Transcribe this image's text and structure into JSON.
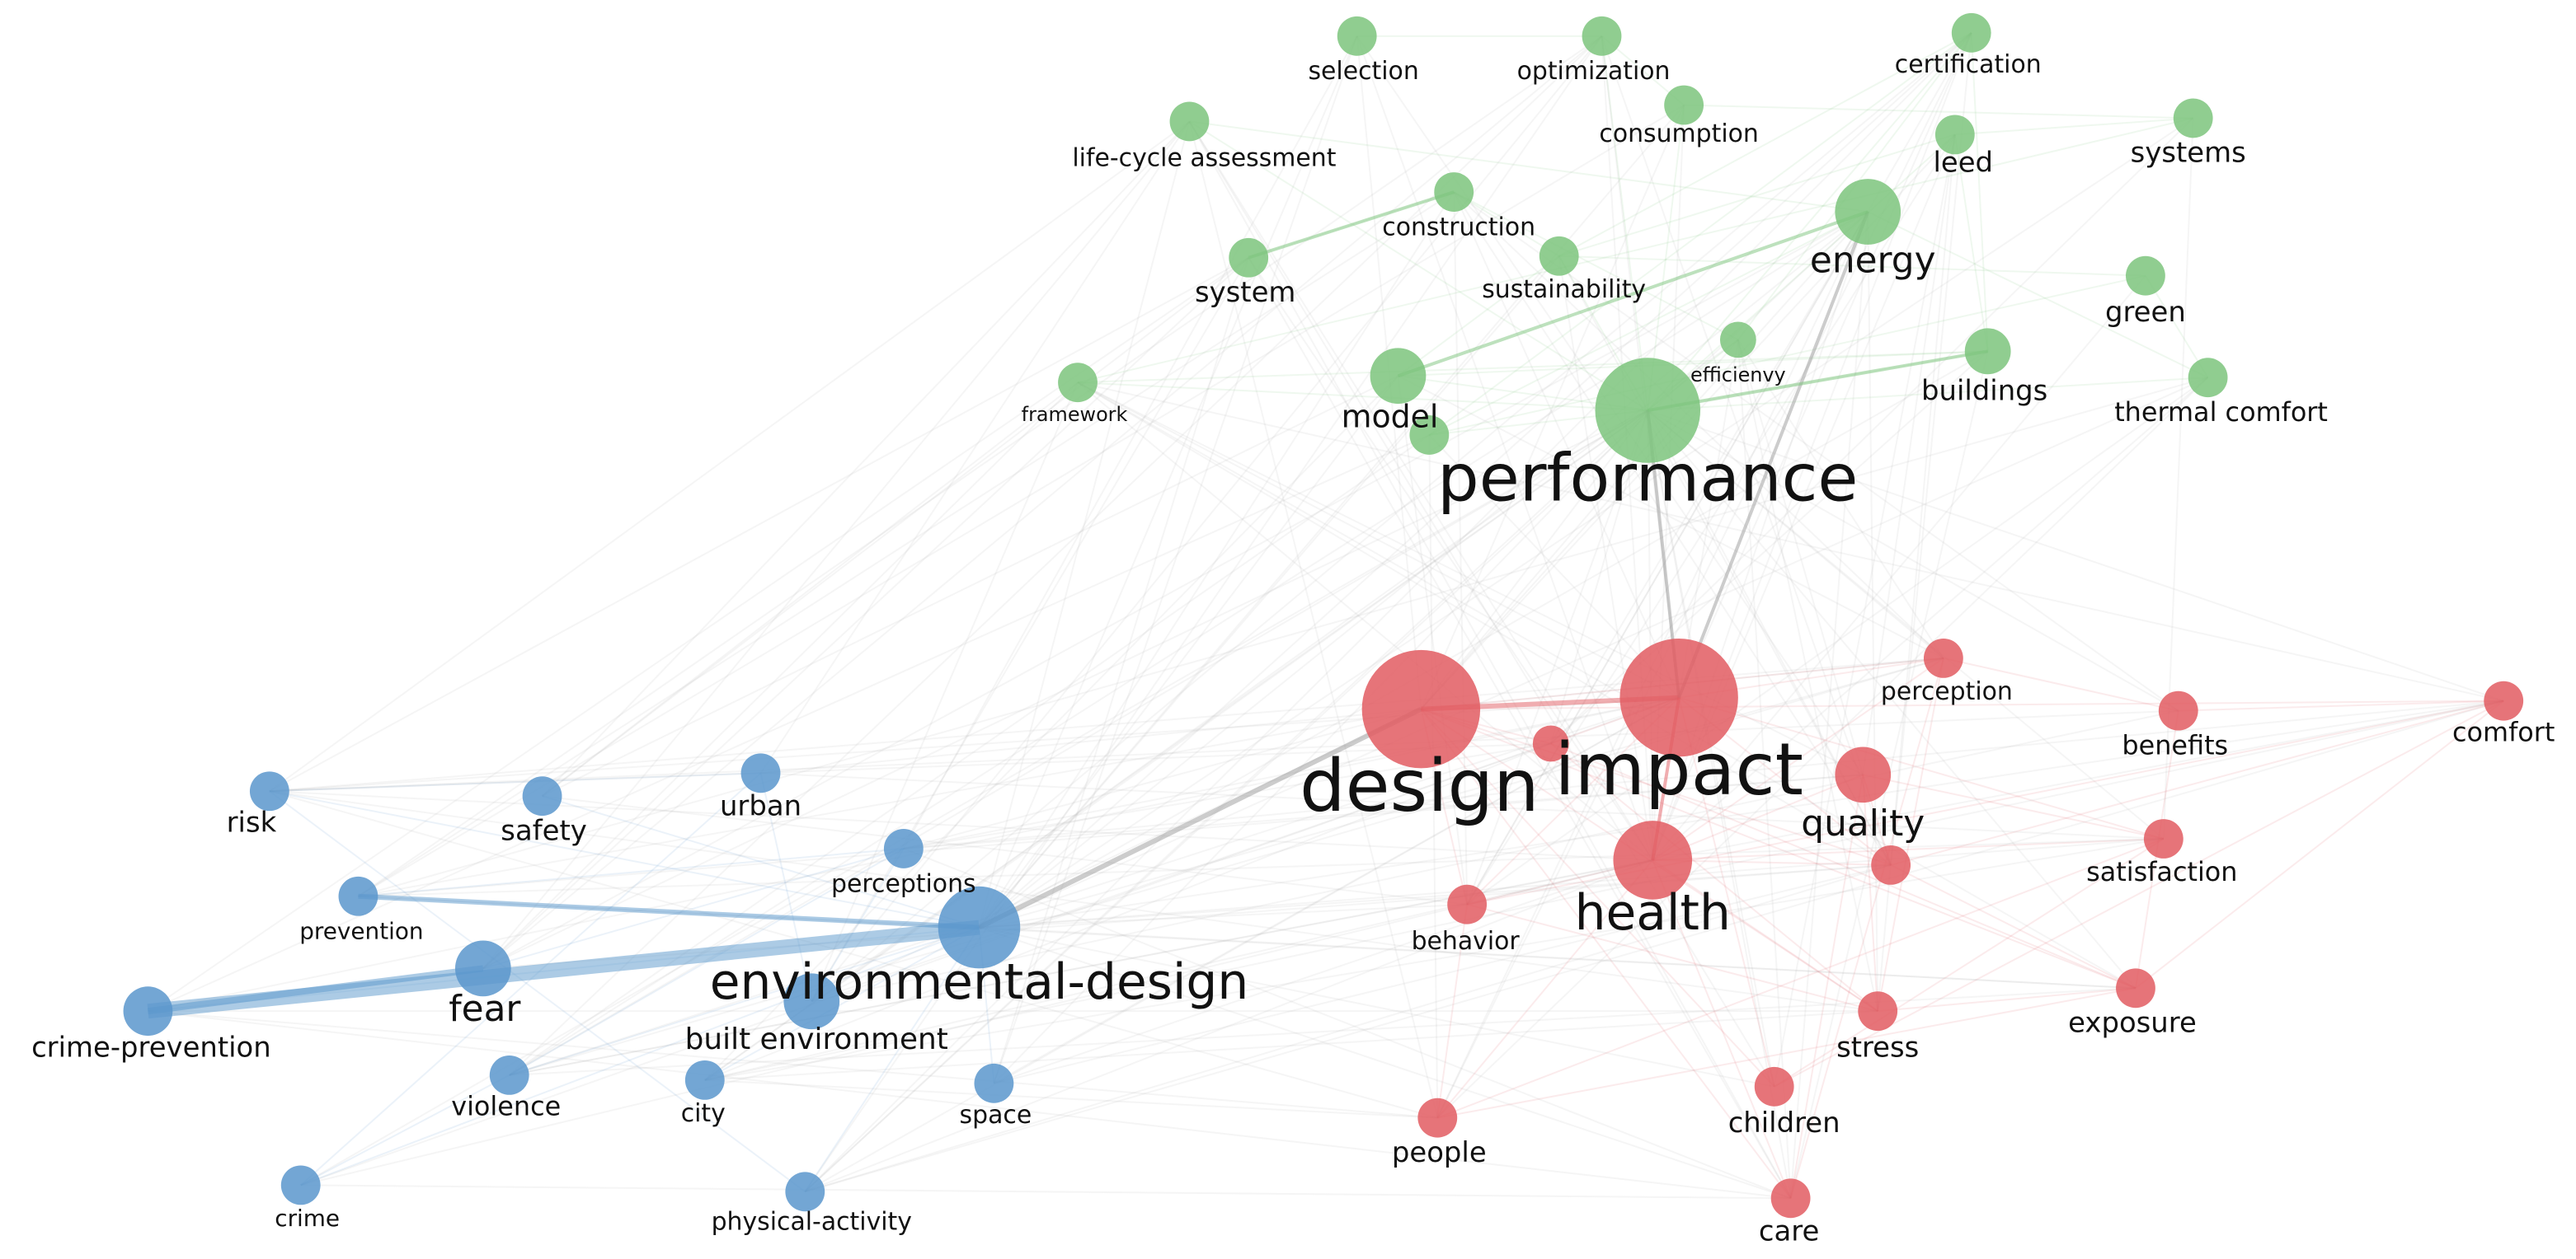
{
  "nodes": [
    {
      "label": "selection"
    },
    {
      "label": "optimization"
    },
    {
      "label": "certification"
    },
    {
      "label": "consumption"
    },
    {
      "label": "life-cycle assessment"
    },
    {
      "label": "leed"
    },
    {
      "label": "systems"
    },
    {
      "label": "construction"
    },
    {
      "label": "energy"
    },
    {
      "label": "system"
    },
    {
      "label": "sustainability"
    },
    {
      "label": "green"
    },
    {
      "label": "efficienvy"
    },
    {
      "label": "buildings"
    },
    {
      "label": "thermal comfort"
    },
    {
      "label": "framework"
    },
    {
      "label": "model"
    },
    {
      "label": "performance"
    },
    {
      "label": "design"
    },
    {
      "label": "impact"
    },
    {
      "label": "perception"
    },
    {
      "label": "comfort"
    },
    {
      "label": "benefits"
    },
    {
      "label": "quality"
    },
    {
      "label": "health"
    },
    {
      "label": "satisfaction"
    },
    {
      "label": "behavior"
    },
    {
      "label": "stress"
    },
    {
      "label": "exposure"
    },
    {
      "label": "children"
    },
    {
      "label": "people"
    },
    {
      "label": "care"
    },
    {
      "label": "risk"
    },
    {
      "label": "safety"
    },
    {
      "label": "urban"
    },
    {
      "label": "perceptions"
    },
    {
      "label": "prevention"
    },
    {
      "label": "environmental-design"
    },
    {
      "label": "fear"
    },
    {
      "label": "crime-prevention"
    },
    {
      "label": "built environment"
    },
    {
      "label": "violence"
    },
    {
      "label": "city"
    },
    {
      "label": "space"
    },
    {
      "label": "crime"
    },
    {
      "label": "physical-activity"
    }
  ]
}
